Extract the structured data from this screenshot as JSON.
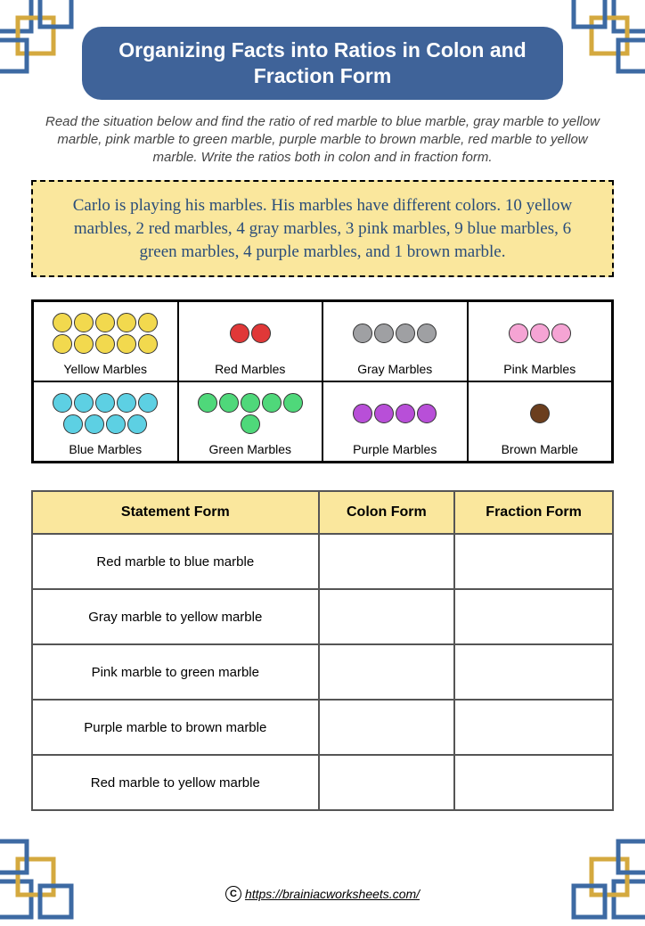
{
  "title": "Organizing Facts into Ratios in Colon and Fraction Form",
  "instructions": "Read the situation below and find the ratio of red marble to blue marble, gray marble to yellow marble, pink marble to green marble, purple marble to brown marble, red marble to yellow marble. Write the ratios both in colon and in fraction form.",
  "scenario": "Carlo is playing his marbles. His marbles have different colors. 10 yellow marbles, 2 red marbles, 4 gray marbles, 3 pink marbles, 9 blue marbles, 6 green marbles, 4 purple marbles, and 1 brown marble.",
  "marble_groups": [
    {
      "label": "Yellow Marbles",
      "count": 10,
      "color": "#f2d94e"
    },
    {
      "label": "Red Marbles",
      "count": 2,
      "color": "#e03838"
    },
    {
      "label": "Gray Marbles",
      "count": 4,
      "color": "#9fa0a3"
    },
    {
      "label": "Pink Marbles",
      "count": 3,
      "color": "#f5a4d4"
    },
    {
      "label": "Blue Marbles",
      "count": 9,
      "color": "#5dd0e3"
    },
    {
      "label": "Green Marbles",
      "count": 6,
      "color": "#4fd87a"
    },
    {
      "label": "Purple Marbles",
      "count": 4,
      "color": "#b84fd8"
    },
    {
      "label": "Brown Marble",
      "count": 1,
      "color": "#6b3e1e"
    }
  ],
  "table": {
    "headers": [
      "Statement Form",
      "Colon Form",
      "Fraction Form"
    ],
    "rows": [
      {
        "statement": "Red marble to blue marble",
        "colon": "",
        "fraction": ""
      },
      {
        "statement": "Gray marble to yellow marble",
        "colon": "",
        "fraction": ""
      },
      {
        "statement": "Pink marble to green marble",
        "colon": "",
        "fraction": ""
      },
      {
        "statement": "Purple marble to brown marble",
        "colon": "",
        "fraction": ""
      },
      {
        "statement": "Red marble to yellow marble",
        "colon": "",
        "fraction": ""
      }
    ]
  },
  "footer_url": "https://brainiacworksheets.com/",
  "colors": {
    "title_bg": "#3f6399",
    "scenario_bg": "#fae79d",
    "scenario_text": "#2a4d7a",
    "decor_blue": "#3d6aa3",
    "decor_gold": "#d4a93f"
  }
}
